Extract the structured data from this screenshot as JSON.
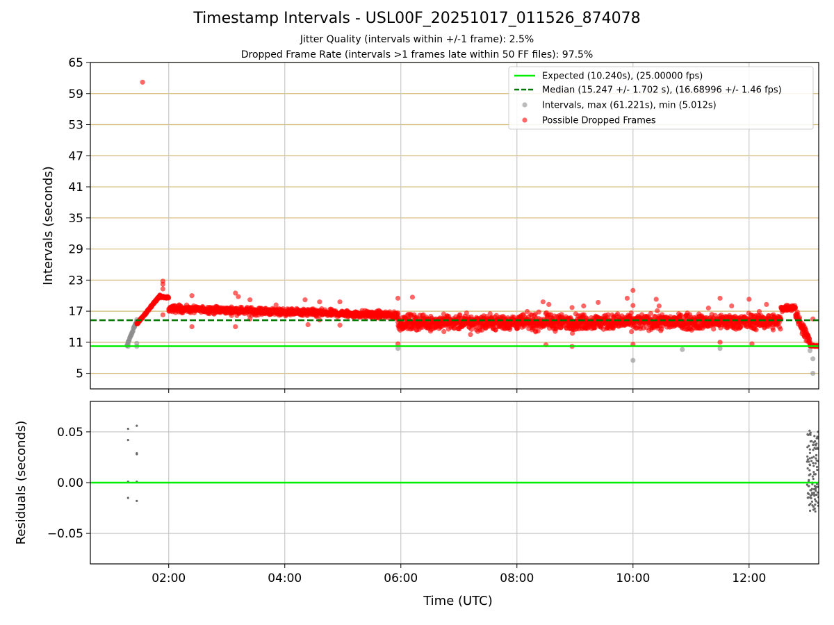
{
  "title": "Timestamp Intervals - USL00F_20251017_011526_874078",
  "subtitle_1": "Jitter Quality (intervals within +/-1 frame): 2.5%",
  "subtitle_2": "Dropped Frame Rate (intervals >1 frames late within 50 FF files): 97.5%",
  "chart_data": [
    {
      "type": "scatter",
      "panel": "intervals",
      "ylabel": "Intervals (seconds)",
      "ylim": [
        2,
        65
      ],
      "yticks": [
        5,
        11,
        17,
        23,
        29,
        35,
        41,
        47,
        53,
        59,
        65
      ],
      "xlim_hours": [
        0.65,
        13.2
      ],
      "grid": "horizontal lines at y ticks; vertical lines at x ticks",
      "legend_position": "top-right",
      "legend": [
        "Expected (10.240s), (25.00000 fps)",
        "Median (15.247 +/- 1.702 s), (16.68996 +/- 1.46 fps)",
        "Intervals, max (61.221s), min (5.012s)",
        "Possible Dropped Frames"
      ],
      "expected_line": 10.24,
      "median_line": 15.247,
      "colors": {
        "expected": "#00ee00",
        "median": "#007700",
        "intervals": "#8c8c8c",
        "dropped": "#ff0000",
        "ygrid": "#d2b870",
        "xgrid": "#c8c8c8"
      },
      "segments": [
        {
          "name": "ramp",
          "x_start": 1.28,
          "x_end": 1.45,
          "y_start": 10.3,
          "y_end": 15.2,
          "kind": "intervals"
        },
        {
          "name": "rise",
          "x_start": 1.45,
          "x_end": 1.85,
          "y_start": 14.5,
          "y_end": 20.0,
          "kind": "dropped"
        },
        {
          "name": "plateau",
          "x_start": 1.85,
          "x_end": 2.0,
          "y_start": 19.8,
          "y_end": 19.6,
          "kind": "dropped"
        },
        {
          "name": "band1",
          "x_start": 2.0,
          "x_end": 5.95,
          "y_start": 17.5,
          "y_end": 16.2,
          "spread": 0.6,
          "kind": "dropped"
        },
        {
          "name": "band2",
          "x_start": 5.95,
          "x_end": 12.55,
          "y_start": 14.8,
          "y_end": 15.0,
          "spread": 1.3,
          "kind": "dropped"
        },
        {
          "name": "bump",
          "x_start": 12.55,
          "x_end": 12.8,
          "y_start": 17.5,
          "y_end": 17.8,
          "spread": 0.5,
          "kind": "dropped"
        },
        {
          "name": "drop",
          "x_start": 12.8,
          "x_end": 13.05,
          "y_start": 16.5,
          "y_end": 11.0,
          "spread": 1.0,
          "kind": "dropped"
        },
        {
          "name": "tail",
          "x_start": 13.05,
          "x_end": 13.2,
          "y_start": 10.3,
          "y_end": 10.3,
          "spread": 0.1,
          "kind": "dropped"
        }
      ],
      "outliers_dropped": [
        [
          1.55,
          61.2
        ],
        [
          1.9,
          22.8
        ],
        [
          1.9,
          22.2
        ],
        [
          1.9,
          21.3
        ],
        [
          1.9,
          16.3
        ],
        [
          2.4,
          14.0
        ],
        [
          2.4,
          20.0
        ],
        [
          3.15,
          20.5
        ],
        [
          3.15,
          14.0
        ],
        [
          3.2,
          19.8
        ],
        [
          3.4,
          19.2
        ],
        [
          3.4,
          15.5
        ],
        [
          3.85,
          18.2
        ],
        [
          4.35,
          19.2
        ],
        [
          4.4,
          14.4
        ],
        [
          4.6,
          18.8
        ],
        [
          4.6,
          15.3
        ],
        [
          4.95,
          18.8
        ],
        [
          4.95,
          14.3
        ],
        [
          5.95,
          19.5
        ],
        [
          5.95,
          10.7
        ],
        [
          6.2,
          19.7
        ],
        [
          7.2,
          12.5
        ],
        [
          8.45,
          18.8
        ],
        [
          8.5,
          10.5
        ],
        [
          8.55,
          18.3
        ],
        [
          8.95,
          17.7
        ],
        [
          8.95,
          10.2
        ],
        [
          9.15,
          18.0
        ],
        [
          9.4,
          18.7
        ],
        [
          9.9,
          19.5
        ],
        [
          10.0,
          21.0
        ],
        [
          10.0,
          18.1
        ],
        [
          10.0,
          10.6
        ],
        [
          10.4,
          19.3
        ],
        [
          10.45,
          18.0
        ],
        [
          11.3,
          17.6
        ],
        [
          11.5,
          19.5
        ],
        [
          11.5,
          11.0
        ],
        [
          11.7,
          18.0
        ],
        [
          12.0,
          19.3
        ],
        [
          12.05,
          10.7
        ],
        [
          12.3,
          18.3
        ],
        [
          13.1,
          15.5
        ]
      ],
      "outliers_intervals": [
        [
          5.95,
          9.8
        ],
        [
          10.0,
          7.5
        ],
        [
          10.85,
          9.6
        ],
        [
          11.5,
          9.8
        ],
        [
          13.05,
          9.4
        ],
        [
          13.1,
          7.8
        ],
        [
          13.1,
          5.0
        ],
        [
          1.3,
          10.2
        ],
        [
          1.3,
          10.6
        ],
        [
          1.45,
          10.2
        ],
        [
          1.45,
          10.8
        ]
      ]
    },
    {
      "type": "scatter",
      "panel": "residuals",
      "ylabel": "Residuals (seconds)",
      "xlabel": "Time (UTC)",
      "ylim": [
        -0.08,
        0.08
      ],
      "yticks": [
        0.05,
        0.0,
        -0.05
      ],
      "ytick_labels": [
        "0.05",
        "0.00",
        "−0.05"
      ],
      "xticks_hours": [
        2,
        4,
        6,
        8,
        10,
        12
      ],
      "xtick_labels": [
        "02:00",
        "04:00",
        "06:00",
        "08:00",
        "10:00",
        "12:00"
      ],
      "zero_line": 0.0,
      "points": [
        [
          1.3,
          0.053
        ],
        [
          1.3,
          0.042
        ],
        [
          1.3,
          0.001
        ],
        [
          1.3,
          -0.015
        ],
        [
          1.45,
          0.056
        ],
        [
          1.45,
          0.028
        ],
        [
          1.45,
          0.029
        ],
        [
          1.45,
          0.001
        ],
        [
          1.45,
          -0.018
        ]
      ],
      "tail_cluster": {
        "x_start": 13.0,
        "x_end": 13.2,
        "y_min": -0.03,
        "y_max": 0.052,
        "count": 110
      }
    }
  ]
}
